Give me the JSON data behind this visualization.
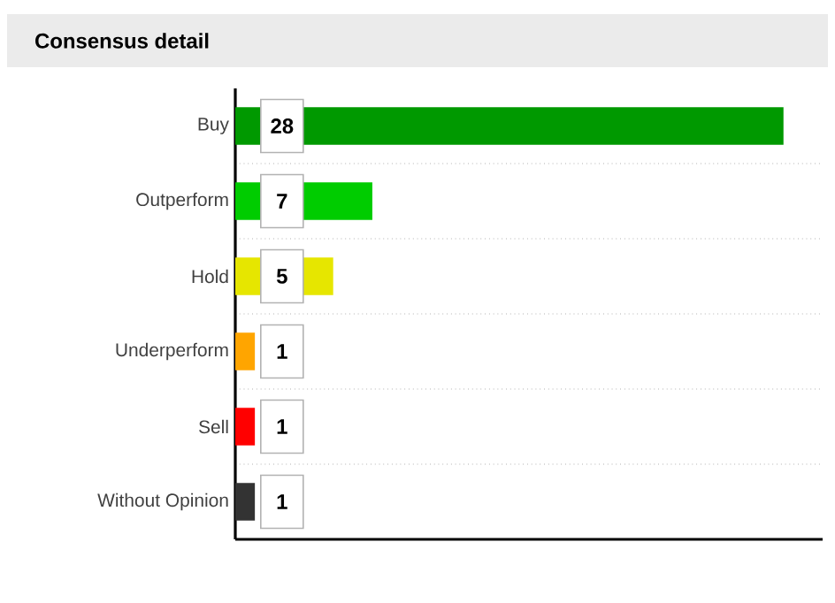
{
  "chart_data": {
    "type": "bar",
    "orientation": "horizontal",
    "title": "Consensus detail",
    "categories": [
      "Buy",
      "Outperform",
      "Hold",
      "Underperform",
      "Sell",
      "Without Opinion"
    ],
    "values": [
      28,
      7,
      5,
      1,
      1,
      1
    ],
    "colors": [
      "#009900",
      "#00cc00",
      "#e6e600",
      "#ffa500",
      "#ff0000",
      "#333333"
    ],
    "xlim": [
      0,
      30
    ],
    "data_labels": true,
    "grid": "y"
  }
}
